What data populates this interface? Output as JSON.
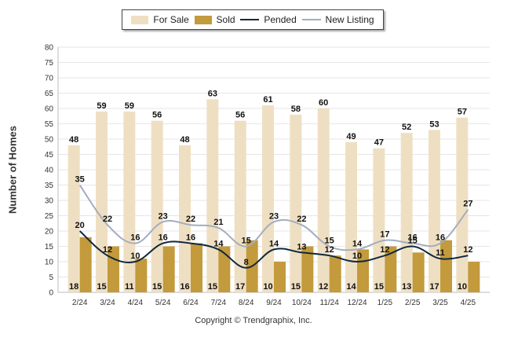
{
  "chart_data": {
    "type": "bar",
    "ylabel": "Number of Homes",
    "xlabel": "",
    "ylim": [
      0,
      80
    ],
    "ytick_step": 5,
    "grid": true,
    "legend_position": "top-center",
    "categories": [
      "2/24",
      "3/24",
      "4/24",
      "5/24",
      "6/24",
      "7/24",
      "8/24",
      "9/24",
      "10/24",
      "11/24",
      "12/24",
      "1/25",
      "2/25",
      "3/25",
      "4/25"
    ],
    "series": [
      {
        "name": "For Sale",
        "kind": "bar",
        "color": "#efdfc2",
        "values": [
          48,
          59,
          59,
          56,
          48,
          63,
          56,
          61,
          58,
          60,
          49,
          47,
          52,
          53,
          57
        ]
      },
      {
        "name": "Sold",
        "kind": "bar",
        "color": "#c39a3c",
        "values": [
          18,
          15,
          11,
          15,
          16,
          15,
          17,
          10,
          15,
          12,
          14,
          15,
          13,
          17,
          10
        ]
      },
      {
        "name": "Pended",
        "kind": "line",
        "color": "#10283d",
        "values": [
          20,
          12,
          10,
          16,
          16,
          14,
          8,
          14,
          13,
          12,
          10,
          12,
          15,
          11,
          12
        ]
      },
      {
        "name": "New Listing",
        "kind": "line",
        "color": "#a4adbf",
        "values": [
          35,
          22,
          16,
          23,
          22,
          21,
          15,
          23,
          22,
          15,
          14,
          17,
          16,
          16,
          27
        ]
      }
    ]
  },
  "copyright": "Copyright © Trendgraphix, Inc."
}
